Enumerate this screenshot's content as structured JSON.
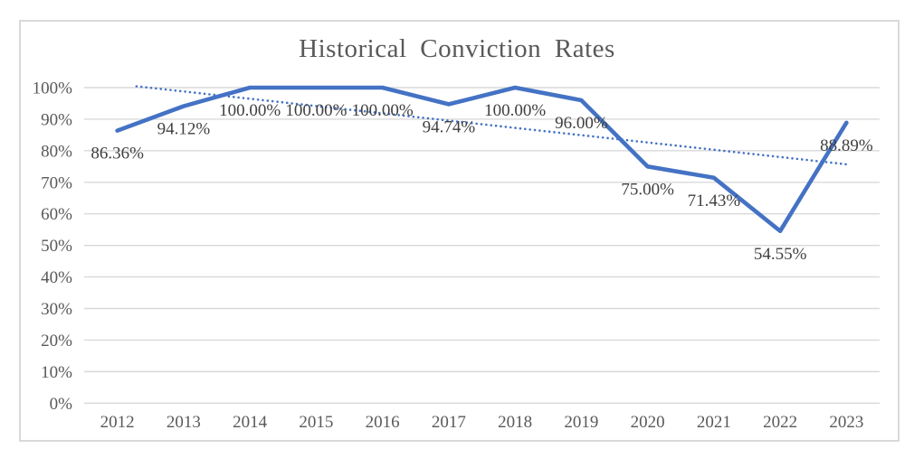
{
  "chart_data": {
    "type": "line",
    "title": "Historical Conviction Rates",
    "categories": [
      "2012",
      "2013",
      "2014",
      "2015",
      "2016",
      "2017",
      "2018",
      "2019",
      "2020",
      "2021",
      "2022",
      "2023"
    ],
    "values": [
      86.36,
      94.12,
      100.0,
      100.0,
      100.0,
      94.74,
      100.0,
      96.0,
      75.0,
      71.43,
      54.55,
      88.89
    ],
    "data_labels": [
      "86.36%",
      "94.12%",
      "100.00%",
      "100.00%",
      "100.00%",
      "94.74%",
      "100.00%",
      "96.00%",
      "75.00%",
      "71.43%",
      "54.55%",
      "88.89%"
    ],
    "xlabel": "",
    "ylabel": "",
    "y_axis": {
      "tick_labels": [
        "0%",
        "10%",
        "20%",
        "30%",
        "40%",
        "50%",
        "60%",
        "70%",
        "80%",
        "90%",
        "100%"
      ],
      "range": [
        0,
        100
      ]
    },
    "grid": "horizontal",
    "legend": "none",
    "trendline": {
      "type": "linear",
      "style": "dotted",
      "value_at_first_category": 101.1,
      "value_at_last_category": 75.7
    },
    "colors": {
      "series": "#4472C4",
      "trendline": "#4472C4",
      "gridline": "#D9D9D9",
      "frame_border": "#D9D9D9",
      "title_text": "#595959",
      "axis_text": "#595959",
      "label_text": "#404040",
      "background": "#FFFFFF"
    }
  }
}
